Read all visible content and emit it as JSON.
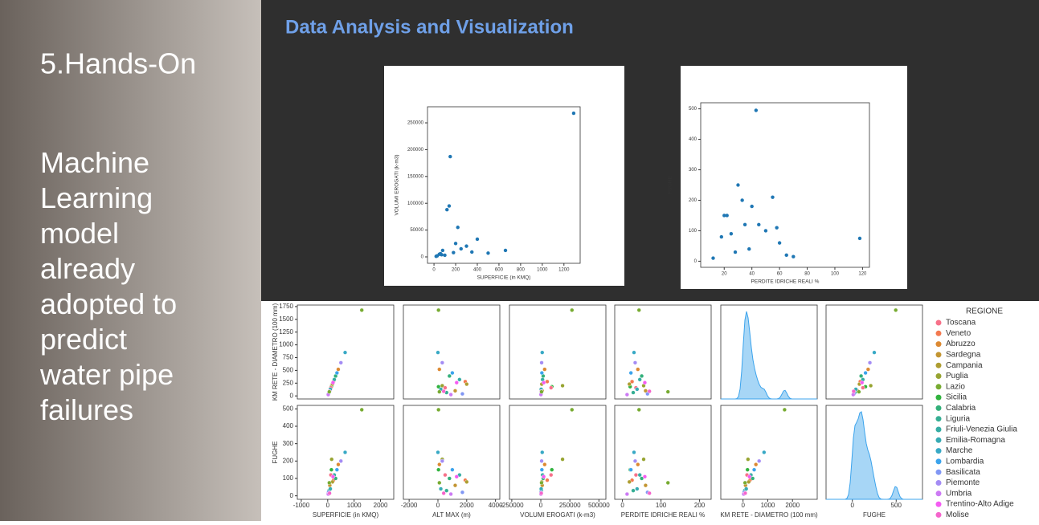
{
  "slide": {
    "title": "Data Analysis and Visualization",
    "section": "5.Hands-On",
    "text": "Machine Learning model already adopted to predict water pipe failures"
  },
  "columns": [
    {
      "label": "SUPERFICIE (in KMQ)",
      "values": [
        1290,
        660,
        150,
        140,
        120,
        220,
        400,
        80,
        180,
        300,
        50,
        250,
        100,
        350,
        30,
        500,
        20,
        200,
        70,
        60
      ]
    },
    {
      "label": "ALT MAX (m)",
      "values": [
        40,
        0,
        300,
        40,
        500,
        1900,
        100,
        1200,
        2000,
        800,
        600,
        1500,
        200,
        1000,
        1700,
        300,
        900,
        1300,
        400,
        100
      ]
    },
    {
      "label": "VOLUMI EROGATI (k-m3)",
      "values": [
        268000,
        12000,
        187000,
        95000,
        88000,
        55000,
        33000,
        12000,
        8000,
        20000,
        5000,
        15000,
        3000,
        9000,
        2000,
        7000,
        1000,
        25000,
        4000,
        6000
      ]
    },
    {
      "label": "PERDITE IDRICHE REALI %",
      "values": [
        43,
        30,
        55,
        20,
        35,
        25,
        40,
        60,
        18,
        50,
        28,
        45,
        38,
        22,
        65,
        33,
        12,
        58,
        70,
        118
      ]
    },
    {
      "label": "KM RETE - DIAMETRO (100 mm)",
      "values": [
        1680,
        850,
        200,
        180,
        160,
        280,
        520,
        100,
        230,
        390,
        65,
        320,
        130,
        450,
        40,
        650,
        25,
        260,
        90,
        80
      ]
    },
    {
      "label": "FUGHE",
      "values": [
        495,
        250,
        210,
        150,
        120,
        90,
        180,
        60,
        80,
        100,
        30,
        120,
        40,
        150,
        20,
        200,
        10,
        110,
        15,
        75
      ]
    },
    {
      "label": "REGIONE",
      "values": [
        "Lazio",
        "Marche",
        "Puglia",
        "Sicilia",
        "Toscana",
        "Veneto",
        "Abruzzo",
        "Sardegna",
        "Campania",
        "Calabria",
        "Liguria",
        "Friuli-Venezia Giulia",
        "Emilia-Romagna",
        "Lombardia",
        "Basilicata",
        "Piemonte",
        "Umbria",
        "Trentino-Alto Adige",
        "Molise",
        "Lazio"
      ]
    }
  ],
  "scatter_plots": [
    {
      "x_label": "SUPERFICIE (in KMQ)",
      "y_label": "VOLUMI EROGATI (k-m3)",
      "color": "#1f77b4",
      "xlim": [
        -60,
        1350
      ],
      "xticks": [
        0,
        200,
        400,
        600,
        800,
        1000,
        1200
      ],
      "ylim": [
        -12000,
        280000
      ],
      "yticks": [
        0,
        50000,
        100000,
        150000,
        200000,
        250000
      ]
    },
    {
      "x_label": "PERDITE IDRICHE REALI %",
      "y_label": "FUGHE",
      "color": "#1f77b4",
      "xlim": [
        3,
        125
      ],
      "xticks": [
        20,
        40,
        60,
        80,
        100,
        120
      ],
      "ylim": [
        -20,
        520
      ],
      "yticks": [
        0,
        100,
        200,
        300,
        400,
        500
      ]
    }
  ],
  "pair_grid": {
    "columns": [
      {
        "label": "SUPERFICIE (in KMQ)",
        "xlim": [
          -1150,
          2500
        ],
        "xticks": [
          -1000,
          0,
          1000,
          2000
        ]
      },
      {
        "label": "ALT MAX (m)",
        "xlim": [
          -2400,
          4300
        ],
        "xticks": [
          -2000,
          0,
          2000,
          4000
        ]
      },
      {
        "label": "VOLUMI EROGATI (k-m3)",
        "xlim": [
          -270000,
          560000
        ],
        "xticks": [
          -250000,
          0,
          250000,
          500000
        ]
      },
      {
        "label": "PERDITE IDRICHE REALI %",
        "xlim": [
          -20,
          230
        ],
        "xticks": [
          0,
          100,
          200
        ]
      },
      {
        "label": "KM RETE - DIAMETRO (100 mm)",
        "xlim": [
          -900,
          3000
        ],
        "xticks": [
          0,
          1000,
          2000
        ]
      },
      {
        "label": "FUGHE",
        "xlim": [
          -300,
          800
        ],
        "xticks": [
          0,
          500
        ]
      }
    ],
    "rows": [
      {
        "label": "KM RETE - DIAMETRO (100 mm)",
        "ylim": [
          -60,
          1780
        ],
        "yticks": [
          0,
          250,
          500,
          750,
          1000,
          1250,
          1500,
          1750
        ]
      },
      {
        "label": "FUGHE",
        "ylim": [
          -20,
          520
        ],
        "yticks": [
          0,
          100,
          200,
          300,
          400,
          500
        ]
      }
    ]
  },
  "legend": {
    "title": "REGIONE",
    "entries": [
      {
        "name": "Toscana",
        "color": "#f77189"
      },
      {
        "name": "Veneto",
        "color": "#f3794f"
      },
      {
        "name": "Abruzzo",
        "color": "#dc8932"
      },
      {
        "name": "Sardegna",
        "color": "#c39532"
      },
      {
        "name": "Campania",
        "color": "#ae9d31"
      },
      {
        "name": "Puglia",
        "color": "#97a431"
      },
      {
        "name": "Lazio",
        "color": "#77ab31"
      },
      {
        "name": "Sicilia",
        "color": "#31b33e"
      },
      {
        "name": "Calabria",
        "color": "#33b07a"
      },
      {
        "name": "Liguria",
        "color": "#35ae93"
      },
      {
        "name": "Friuli-Venezia Giulia",
        "color": "#36ada4"
      },
      {
        "name": "Emilia-Romagna",
        "color": "#37abb4"
      },
      {
        "name": "Marche",
        "color": "#38a9c5"
      },
      {
        "name": "Lombardia",
        "color": "#3ba3ec"
      },
      {
        "name": "Basilicata",
        "color": "#8197f4"
      },
      {
        "name": "Piemonte",
        "color": "#a48cf4"
      },
      {
        "name": "Umbria",
        "color": "#cc7af4"
      },
      {
        "name": "Trentino-Alto Adige",
        "color": "#f45cf2"
      },
      {
        "name": "Molise",
        "color": "#f565cc"
      }
    ]
  }
}
